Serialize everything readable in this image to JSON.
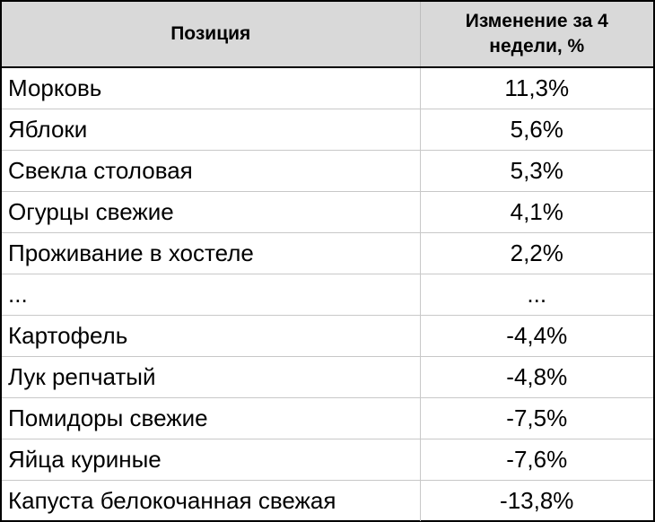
{
  "table": {
    "headers": {
      "position": "Позиция",
      "change": "Изменение за 4 недели, %"
    },
    "rows": [
      {
        "position": "Морковь",
        "change": "11,3%"
      },
      {
        "position": "Яблоки",
        "change": "5,6%"
      },
      {
        "position": "Свекла столовая",
        "change": "5,3%"
      },
      {
        "position": "Огурцы свежие",
        "change": "4,1%"
      },
      {
        "position": "Проживание в хостеле",
        "change": "2,2%"
      },
      {
        "position": "...",
        "change": "..."
      },
      {
        "position": "Картофель",
        "change": "-4,4%"
      },
      {
        "position": "Лук репчатый",
        "change": "-4,8%"
      },
      {
        "position": "Помидоры свежие",
        "change": "-7,5%"
      },
      {
        "position": "Яйца куриные",
        "change": "-7,6%"
      },
      {
        "position": "Капуста белокочанная свежая",
        "change": "-13,8%"
      }
    ],
    "colors": {
      "header_bg": "#d9d9d9",
      "border": "#000000",
      "row_separator": "#c8c8c8",
      "text": "#000000"
    }
  }
}
